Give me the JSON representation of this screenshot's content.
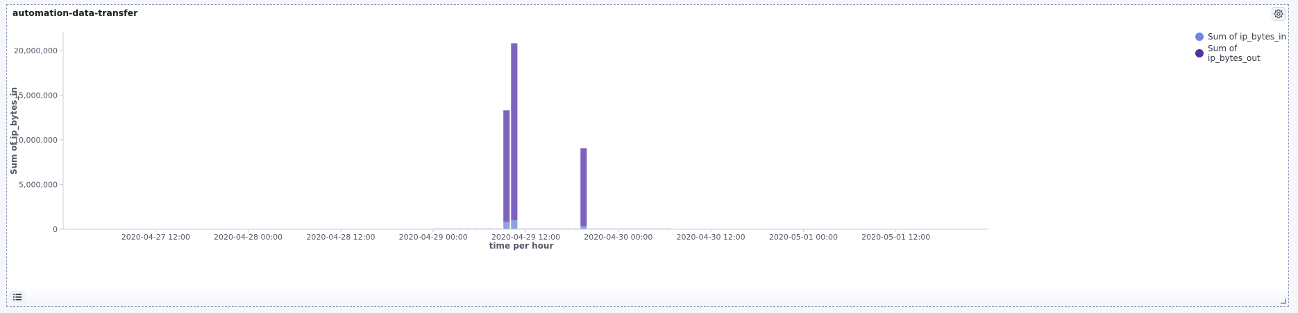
{
  "panel": {
    "title": "automation-data-transfer"
  },
  "icons": {
    "settings": "gear-icon",
    "legend_toggle": "list-icon",
    "resize": "resize-handle-icon"
  },
  "chart_data": {
    "type": "bar",
    "stacked": true,
    "xlabel": "time per hour",
    "ylabel": "Sum of ip_bytes_in",
    "x_range": [
      "2020-04-27 00:00",
      "2020-05-02 00:00"
    ],
    "xticks": [
      "2020-04-27 12:00",
      "2020-04-28 00:00",
      "2020-04-28 12:00",
      "2020-04-29 00:00",
      "2020-04-29 12:00",
      "2020-04-30 00:00",
      "2020-04-30 12:00",
      "2020-05-01 00:00",
      "2020-05-01 12:00"
    ],
    "ylim": [
      0,
      22000000
    ],
    "yticks": [
      0,
      5000000,
      10000000,
      15000000,
      20000000
    ],
    "ytick_labels": [
      "0",
      "5,000,000",
      "10,000,000",
      "15,000,000",
      "20,000,000"
    ],
    "legend_position": "top-right",
    "bar_width_hours": 0.82,
    "series": [
      {
        "name": "Sum of ip_bytes_in",
        "color": "#8fa3dd",
        "points": [
          {
            "x": "2020-04-29 09:00",
            "y": 800000
          },
          {
            "x": "2020-04-29 10:00",
            "y": 1000000
          },
          {
            "x": "2020-04-29 19:00",
            "y": 350000
          }
        ]
      },
      {
        "name": "Sum of ip_bytes_out",
        "color": "#7f62c0",
        "points": [
          {
            "x": "2020-04-29 09:00",
            "y": 12500000
          },
          {
            "x": "2020-04-29 10:00",
            "y": 19800000
          },
          {
            "x": "2020-04-29 19:00",
            "y": 8700000
          }
        ]
      }
    ],
    "small_bar_hours": [
      "2020-04-29 00:00",
      "2020-04-29 01:00",
      "2020-04-29 02:00",
      "2020-04-29 03:00",
      "2020-04-29 04:00",
      "2020-04-29 05:00",
      "2020-04-29 06:00",
      "2020-04-29 07:00",
      "2020-04-29 08:00",
      "2020-04-29 11:00",
      "2020-04-29 12:00",
      "2020-04-29 13:00",
      "2020-04-29 14:00",
      "2020-04-29 15:00",
      "2020-04-29 16:00",
      "2020-04-29 17:00",
      "2020-04-29 18:00",
      "2020-04-29 20:00",
      "2020-04-29 21:00",
      "2020-04-29 22:00",
      "2020-04-29 23:00",
      "2020-04-30 00:00",
      "2020-04-30 01:00",
      "2020-04-30 02:00",
      "2020-04-30 03:00",
      "2020-04-30 04:00",
      "2020-04-30 05:00",
      "2020-04-30 06:00"
    ],
    "small_bar_value": 60000,
    "legend_colors": {
      "Sum of ip_bytes_in": "#6f87d8",
      "Sum of ip_bytes_out": "#54319e"
    }
  }
}
